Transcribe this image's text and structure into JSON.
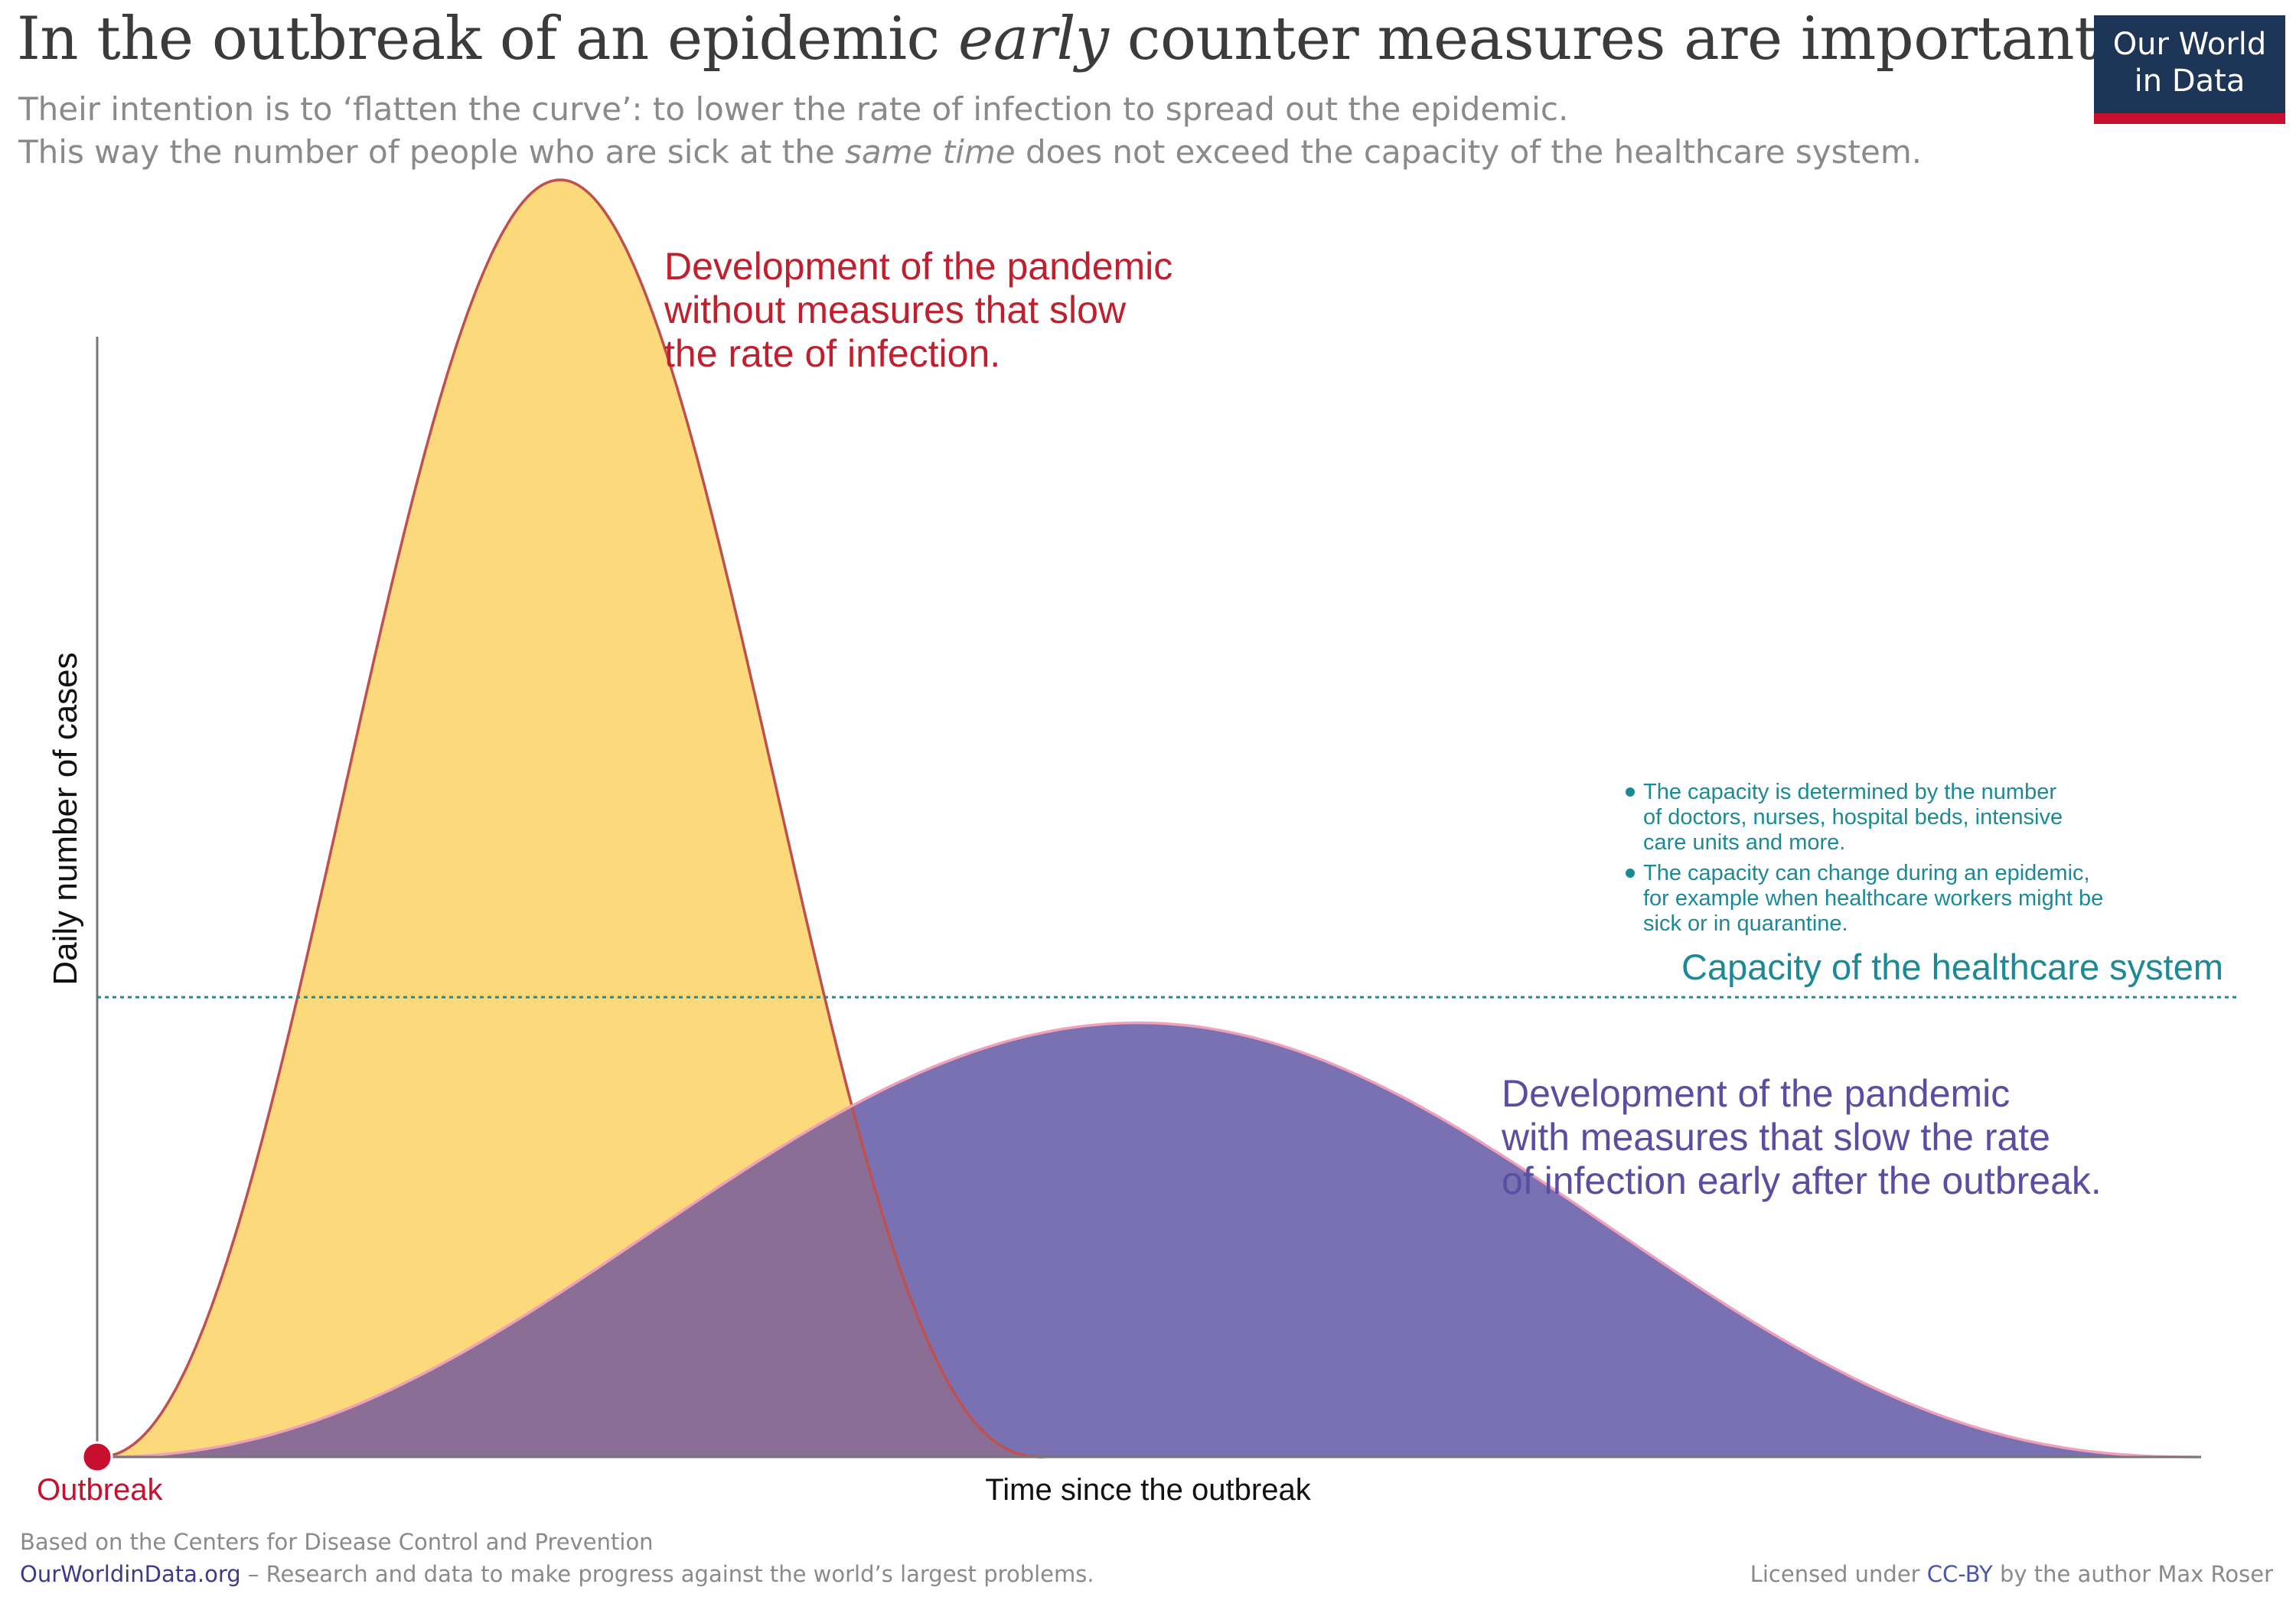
{
  "header": {
    "title_before": "In the outbreak of an epidemic ",
    "title_emph": "early",
    "title_after": " counter measures are important",
    "subtitle_line1": "Their intention is to ‘flatten the curve’: to lower the rate of infection to spread out the epidemic.",
    "subtitle_line2_before": "This way the number of people who are sick at the ",
    "subtitle_line2_emph": "same time",
    "subtitle_line2_after": " does not exceed the capacity of the healthcare system."
  },
  "logo": {
    "line1": "Our World",
    "line2": "in Data"
  },
  "chart_data": {
    "type": "area",
    "xlabel": "Time since the outbreak",
    "ylabel": "Daily number of cases",
    "x_origin_label": "Outbreak",
    "series": [
      {
        "label_lines": [
          "Development of the pandemic",
          "without measures that slow",
          "the rate of infection."
        ],
        "color": "#fcd670",
        "stroke": "#c0504d",
        "label_color": "#c0202e",
        "peak_x": 0.22,
        "peak_y": 1.0,
        "spread": 0.065,
        "end_x": 0.45
      },
      {
        "label_lines": [
          "Development of the pandemic",
          "with measures that slow the rate",
          "of infection early after the outbreak."
        ],
        "color": "#6c62aa",
        "stroke": "#f0a0b8",
        "label_color": "#5a4ea0",
        "peak_x": 0.495,
        "peak_y": 0.34,
        "spread": 0.2,
        "end_x": 1.0
      }
    ],
    "capacity": {
      "label": "Capacity of the healthcare system",
      "y": 0.36,
      "color": "#1a8a96",
      "notes": [
        [
          "The capacity is determined by the number",
          "of doctors, nurses, hospital beds, intensive",
          "care units and more."
        ],
        [
          "The capacity can change during an epidemic,",
          "for example when healthcare workers might be",
          "sick or in quarantine."
        ]
      ]
    },
    "origin_color": "#c8102e",
    "axis_color": "#777777",
    "overlap_color": "#8a6e96"
  },
  "footer": {
    "source": "Based on the Centers for Disease Control and Prevention",
    "site": "OurWorldinData.org",
    "tagline": " – Research and data to make progress against the world’s largest problems.",
    "license_before": "Licensed under ",
    "license_cc": "CC-BY",
    "license_after": " by the author Max Roser"
  }
}
